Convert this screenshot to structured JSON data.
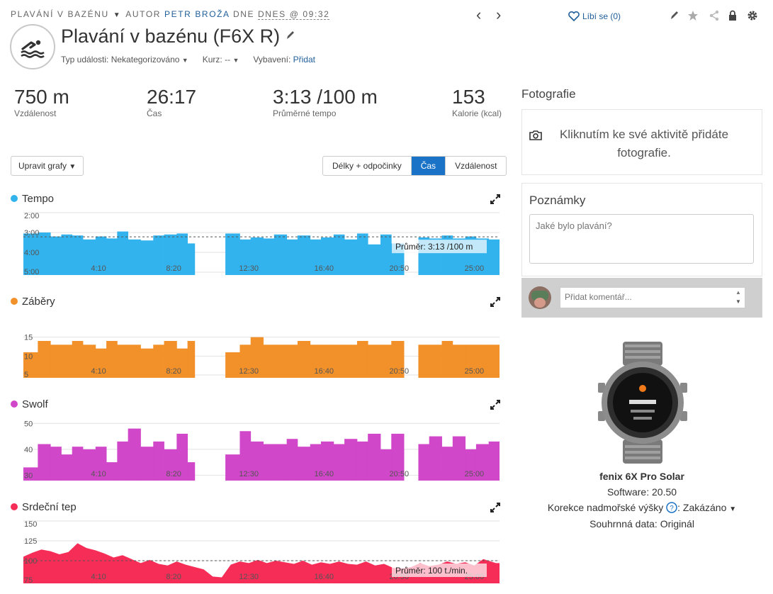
{
  "header": {
    "activity_type": "PLAVÁNÍ V BAZÉNU",
    "by_label": "AUTOR",
    "author": "PETR BROŽA",
    "date_prefix": "DNE",
    "date": "DNES @ 09:32",
    "title": "Plavání v bazénu (F6X R)",
    "event_type_label": "Typ události:",
    "event_type_value": "Nekategorizováno",
    "course_label": "Kurz:",
    "course_value": "--",
    "gear_label": "Vybavení:",
    "gear_link": "Přidat",
    "like_label": "Líbí se (0)",
    "icons": [
      "prev-arrow-icon",
      "next-arrow-icon",
      "heart-icon",
      "pencil-icon",
      "star-icon",
      "share-icon",
      "lock-icon",
      "gear-icon"
    ]
  },
  "stats": [
    {
      "value": "750 m",
      "label": "Vzdálenost"
    },
    {
      "value": "26:17",
      "label": "Čas"
    },
    {
      "value": "3:13 /100 m",
      "label": "Průměrné tempo"
    },
    {
      "value": "153",
      "label": "Kalorie (kcal)"
    }
  ],
  "controls": {
    "edit_charts": "Upravit grafy",
    "tabs": [
      "Délky + odpočinky",
      "Čas",
      "Vzdálenost"
    ],
    "active_tab": "Čas"
  },
  "colors": {
    "tempo": "#33b3ee",
    "strokes": "#f29129",
    "swolf": "#d147c9",
    "heart": "#f52d57",
    "accent": "#1a73c6"
  },
  "chart_data": [
    {
      "type": "bar",
      "title": "Tempo",
      "yticks": [
        "2:00",
        "3:00",
        "4:00",
        "5:00"
      ],
      "ylim": [
        2.0,
        5.0
      ],
      "xticks": [
        "4:10",
        "8:20",
        "12:30",
        "16:40",
        "20:50",
        "25:00"
      ],
      "x_unit": "min",
      "x": [
        0,
        0.8,
        1.5,
        2.1,
        2.7,
        3.3,
        4.0,
        4.6,
        5.2,
        5.8,
        6.5,
        7.2,
        7.8,
        8.5,
        9.1,
        9.5,
        11.2,
        12.0,
        12.6,
        13.3,
        13.9,
        14.6,
        15.2,
        15.9,
        16.5,
        17.2,
        17.8,
        18.5,
        19.1,
        19.8,
        20.4,
        21.1,
        21.9,
        22.5,
        23.2,
        23.8,
        24.5,
        25.1,
        25.8
      ],
      "values": [
        3.05,
        3.0,
        3.2,
        3.1,
        3.15,
        3.35,
        3.2,
        3.3,
        2.95,
        3.35,
        3.4,
        3.15,
        3.1,
        3.05,
        3.55,
        null,
        3.05,
        3.35,
        3.25,
        3.3,
        3.1,
        3.35,
        3.15,
        3.35,
        3.25,
        3.1,
        3.35,
        3.05,
        3.6,
        3.1,
        3.55,
        null,
        3.25,
        3.3,
        3.15,
        3.3,
        3.2,
        3.3,
        3.35
      ],
      "average": 3.22,
      "average_label": "Průměr: 3:13 /100 m"
    },
    {
      "type": "bar",
      "title": "Záběry",
      "yticks": [
        "15",
        "10",
        "5"
      ],
      "ylim": [
        5,
        17
      ],
      "xticks": [
        "4:10",
        "8:20",
        "12:30",
        "16:40",
        "20:50",
        "25:00"
      ],
      "x": [
        0,
        0.8,
        1.5,
        2.1,
        2.7,
        3.3,
        4.0,
        4.6,
        5.2,
        5.8,
        6.5,
        7.2,
        7.8,
        8.5,
        9.1,
        9.5,
        11.2,
        12.0,
        12.6,
        13.3,
        13.9,
        14.6,
        15.2,
        15.9,
        16.5,
        17.2,
        17.8,
        18.5,
        19.1,
        19.8,
        20.4,
        21.1,
        21.9,
        22.5,
        23.2,
        23.8,
        24.5,
        25.1,
        25.8
      ],
      "values": [
        11,
        14,
        13,
        13,
        14,
        13,
        12,
        14,
        13,
        13,
        12,
        13,
        14,
        12,
        14,
        null,
        11,
        13,
        15,
        13,
        13,
        13,
        14,
        13,
        13,
        13,
        13,
        14,
        13,
        13,
        14,
        null,
        13,
        13,
        14,
        13,
        13,
        13,
        13
      ]
    },
    {
      "type": "bar",
      "title": "Swolf",
      "yticks": [
        "50",
        "40",
        "30"
      ],
      "ylim": [
        29,
        52
      ],
      "xticks": [
        "4:10",
        "8:20",
        "12:30",
        "16:40",
        "20:50",
        "25:00"
      ],
      "x": [
        0,
        0.8,
        1.5,
        2.1,
        2.7,
        3.3,
        4.0,
        4.6,
        5.2,
        5.8,
        6.5,
        7.2,
        7.8,
        8.5,
        9.1,
        9.5,
        11.2,
        12.0,
        12.6,
        13.3,
        13.9,
        14.6,
        15.2,
        15.9,
        16.5,
        17.2,
        17.8,
        18.5,
        19.1,
        19.8,
        20.4,
        21.1,
        21.9,
        22.5,
        23.2,
        23.8,
        24.5,
        25.1,
        25.8
      ],
      "values": [
        33,
        42,
        41,
        38,
        41,
        40,
        41,
        35,
        43,
        48,
        41,
        43,
        40,
        46,
        35,
        null,
        38,
        47,
        43,
        42,
        42,
        44,
        41,
        42,
        43,
        42,
        44,
        43,
        46,
        40,
        46,
        null,
        42,
        45,
        41,
        45,
        40,
        42,
        43
      ]
    },
    {
      "type": "area",
      "title": "Srdeční tep",
      "yticks": [
        "150",
        "125",
        "100",
        "75"
      ],
      "ylim": [
        75,
        150
      ],
      "xticks": [
        "4:10",
        "8:20",
        "12:30",
        "16:40",
        "20:50",
        "25:00"
      ],
      "x": [
        0,
        0.5,
        1,
        1.5,
        2,
        2.5,
        3,
        3.5,
        4,
        4.5,
        5,
        5.5,
        6,
        6.5,
        7,
        7.5,
        8,
        8.5,
        9,
        9.5,
        10,
        10.5,
        11,
        11.5,
        12,
        12.5,
        13,
        13.5,
        14,
        14.5,
        15,
        15.5,
        16,
        16.5,
        17,
        17.5,
        18,
        18.5,
        19,
        19.5,
        20,
        20.5,
        21,
        21.5,
        22,
        22.5,
        23,
        23.5,
        24,
        24.5,
        25,
        25.5,
        26.2
      ],
      "values": [
        105,
        110,
        114,
        112,
        108,
        111,
        122,
        116,
        113,
        109,
        104,
        107,
        102,
        97,
        101,
        96,
        94,
        99,
        95,
        92,
        89,
        80,
        79,
        95,
        99,
        97,
        101,
        97,
        100,
        98,
        96,
        100,
        95,
        98,
        96,
        99,
        96,
        95,
        99,
        94,
        96,
        91,
        90,
        92,
        97,
        93,
        95,
        99,
        96,
        98,
        94,
        102,
        97
      ],
      "average": 100,
      "average_label": "Průměr: 100 t./min."
    }
  ],
  "right": {
    "photos_title": "Fotografie",
    "photos_text": "Kliknutím ke své aktivitě přidáte fotografie.",
    "notes_title": "Poznámky",
    "notes_placeholder": "Jaké bylo plavání?",
    "comment_placeholder": "Přidat komentář...",
    "device_name": "fenix 6X Pro Solar",
    "software": "Software: 20.50",
    "altitude_label": "Korekce nadmořské výšky",
    "altitude_value": "Zakázáno",
    "summary": "Souhrnná data: Originál"
  }
}
